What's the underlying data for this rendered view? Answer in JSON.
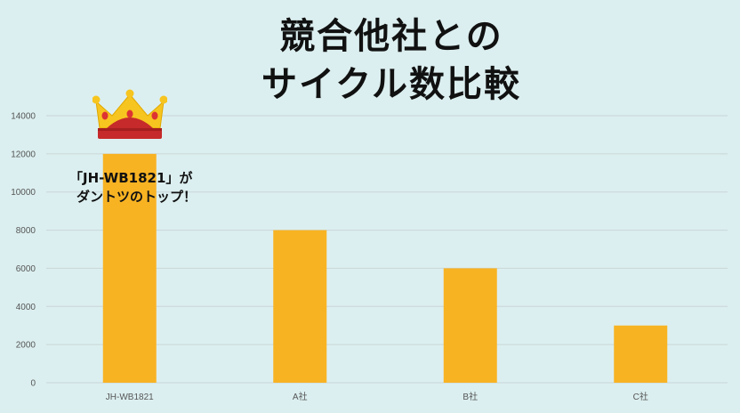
{
  "chart_data": {
    "type": "bar",
    "title_lines": [
      "競合他社との",
      "サイクル数比較"
    ],
    "categories": [
      "JH-WB1821",
      "A社",
      "B社",
      "C社"
    ],
    "values": [
      12000,
      8000,
      6000,
      3000
    ],
    "ylim": [
      0,
      14000
    ],
    "yticks": [
      0,
      2000,
      4000,
      6000,
      8000,
      10000,
      12000,
      14000
    ],
    "grid": true,
    "bar_color": "#f8b323",
    "annotation_lines": [
      "「JH-WB1821」が",
      "ダントツのトップ！"
    ],
    "annotation_icon": "crown-icon"
  }
}
